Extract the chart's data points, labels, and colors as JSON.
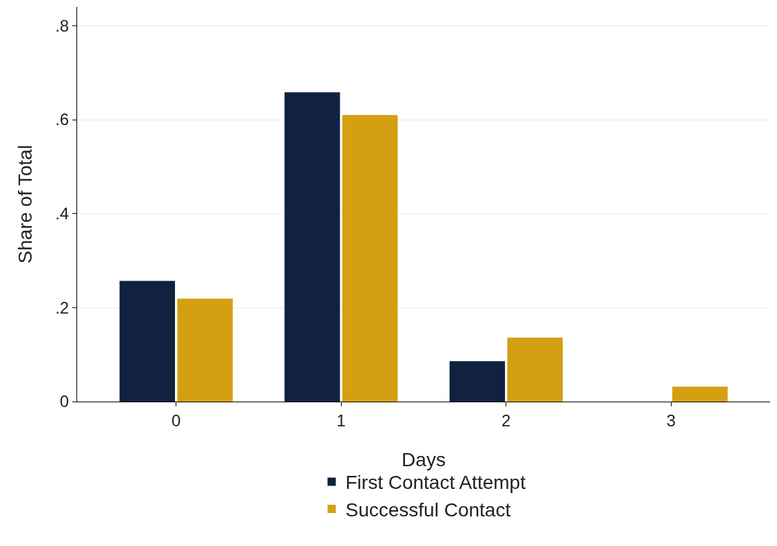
{
  "chart_data": {
    "type": "bar",
    "xlabel": "Days",
    "ylabel": "Share of Total",
    "categories": [
      "0",
      "1",
      "2",
      "3"
    ],
    "series": [
      {
        "name": "First Contact Attempt",
        "color": "#10223f",
        "values": [
          0.257,
          0.658,
          0.086,
          0
        ]
      },
      {
        "name": "Successful Contact",
        "color": "#d4a012",
        "values": [
          0.219,
          0.61,
          0.136,
          0.032
        ]
      }
    ],
    "ylim": [
      0,
      0.84
    ],
    "yticks": [
      0,
      {
        "value": 0.2,
        "label": ".2"
      },
      {
        "value": 0.4,
        "label": ".4"
      },
      {
        "value": 0.6,
        "label": ".6"
      },
      {
        "value": 0.8,
        "label": ".8"
      }
    ],
    "grid": "y",
    "legend": "bottom"
  }
}
